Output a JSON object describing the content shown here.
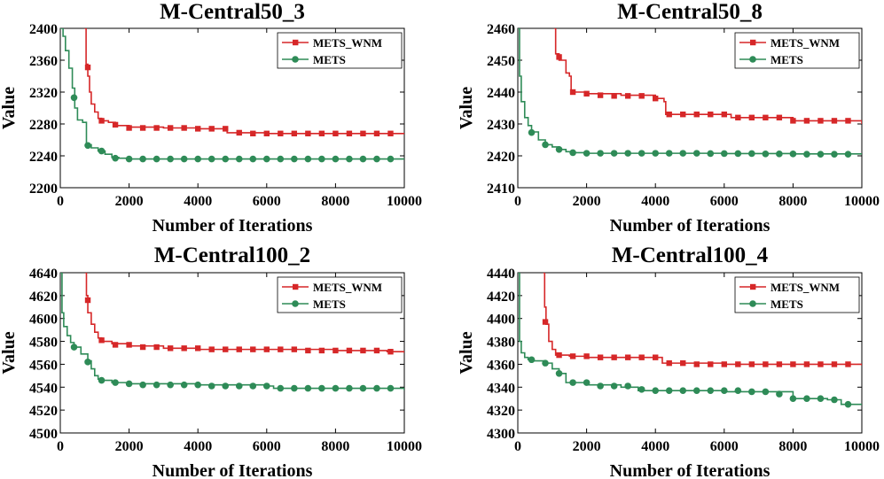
{
  "chart_data": [
    {
      "type": "line",
      "title": "M-Central50_3",
      "xlabel": "Number of Iterations",
      "ylabel": "Value",
      "xlim": [
        0,
        10000
      ],
      "ylim": [
        2200,
        2400
      ],
      "xticks": [
        "0",
        "2000",
        "4000",
        "6000",
        "8000",
        "10000"
      ],
      "yticks": [
        "2200",
        "2240",
        "2280",
        "2320",
        "2360",
        "2400"
      ],
      "grid": false,
      "legend_position": "top-right",
      "series": [
        {
          "name": "METS_WNM",
          "color": "#d62728",
          "marker": "square",
          "x": [
            700,
            750,
            800,
            850,
            900,
            1000,
            1100,
            1200,
            1400,
            1600,
            2000,
            3000,
            4000,
            4800,
            4850,
            6000,
            8000,
            10000
          ],
          "y": [
            2400,
            2355,
            2340,
            2320,
            2305,
            2295,
            2287,
            2284,
            2282,
            2278,
            2276,
            2275,
            2274,
            2274,
            2269,
            2268,
            2268,
            2268
          ],
          "markers_x": [
            800,
            1200,
            1600,
            2000,
            2400,
            2800,
            3200,
            3600,
            4000,
            4400,
            4800,
            5200,
            5600,
            6000,
            6400,
            6800,
            7200,
            7600,
            8000,
            8400,
            8800,
            9200,
            9600
          ],
          "markers_y": [
            2351,
            2284,
            2279,
            2275,
            2275,
            2275,
            2275,
            2275,
            2274,
            2274,
            2274,
            2269,
            2268,
            2268,
            2268,
            2268,
            2268,
            2268,
            2268,
            2268,
            2268,
            2268,
            2268
          ]
        },
        {
          "name": "METS",
          "color": "#2e8b57",
          "marker": "circle",
          "x": [
            0,
            80,
            150,
            250,
            350,
            420,
            500,
            650,
            760,
            900,
            1100,
            1300,
            1500,
            1700,
            2000,
            4000,
            6000,
            8000,
            10000
          ],
          "y": [
            2400,
            2390,
            2372,
            2350,
            2325,
            2300,
            2285,
            2282,
            2254,
            2250,
            2246,
            2242,
            2238,
            2237,
            2236,
            2236,
            2236,
            2236,
            2236
          ],
          "markers_x": [
            400,
            800,
            1200,
            1600,
            2000,
            2400,
            2800,
            3200,
            3600,
            4000,
            4400,
            4800,
            5200,
            5600,
            6000,
            6400,
            6800,
            7200,
            7600,
            8000,
            8400,
            8800,
            9200,
            9600
          ],
          "markers_y": [
            2313,
            2253,
            2246,
            2237,
            2236,
            2236,
            2236,
            2236,
            2236,
            2236,
            2236,
            2236,
            2236,
            2236,
            2236,
            2236,
            2236,
            2236,
            2236,
            2236,
            2236,
            2236,
            2236,
            2236
          ]
        }
      ]
    },
    {
      "type": "line",
      "title": "M-Central50_8",
      "xlabel": "Number of Iterations",
      "ylabel": "Value",
      "xlim": [
        0,
        10000
      ],
      "ylim": [
        2410,
        2460
      ],
      "xticks": [
        "0",
        "2000",
        "4000",
        "6000",
        "8000",
        "10000"
      ],
      "yticks": [
        "2410",
        "2420",
        "2430",
        "2440",
        "2450",
        "2460"
      ],
      "grid": false,
      "legend_position": "top-right",
      "series": [
        {
          "name": "METS_WNM",
          "color": "#d62728",
          "marker": "square",
          "x": [
            1050,
            1100,
            1200,
            1400,
            1500,
            1550,
            2000,
            3000,
            4000,
            4250,
            4300,
            6000,
            6200,
            8000,
            9800,
            10000
          ],
          "y": [
            2460,
            2452,
            2450,
            2446,
            2445,
            2440,
            2439.5,
            2439,
            2438,
            2437,
            2433,
            2433,
            2432,
            2431,
            2431,
            2430
          ],
          "markers_x": [
            1200,
            1600,
            2000,
            2400,
            2800,
            3200,
            3600,
            4000,
            4400,
            4800,
            5200,
            5600,
            6000,
            6400,
            6800,
            7200,
            7600,
            8000,
            8400,
            8800,
            9200,
            9600
          ],
          "markers_y": [
            2451,
            2440,
            2439.5,
            2439,
            2438.8,
            2438.8,
            2438.8,
            2438,
            2433,
            2433,
            2433,
            2433,
            2433,
            2432,
            2432,
            2432,
            2432,
            2431,
            2431,
            2431,
            2431,
            2431
          ]
        },
        {
          "name": "METS",
          "color": "#2e8b57",
          "marker": "circle",
          "x": [
            0,
            50,
            100,
            200,
            300,
            400,
            600,
            800,
            1000,
            1200,
            1400,
            1600,
            2000,
            4000,
            6000,
            8000,
            10000
          ],
          "y": [
            2460,
            2445,
            2437,
            2432,
            2429.5,
            2427.5,
            2425,
            2423.5,
            2422.8,
            2422,
            2421.3,
            2421,
            2420.8,
            2420.8,
            2420.7,
            2420.6,
            2420.5
          ],
          "markers_x": [
            400,
            800,
            1200,
            1600,
            2000,
            2400,
            2800,
            3200,
            3600,
            4000,
            4400,
            4800,
            5200,
            5600,
            6000,
            6400,
            6800,
            7200,
            7600,
            8000,
            8400,
            8800,
            9200,
            9600
          ],
          "markers_y": [
            2427.3,
            2423.5,
            2422,
            2421,
            2420.8,
            2420.8,
            2420.8,
            2420.8,
            2420.8,
            2420.8,
            2420.8,
            2420.8,
            2420.8,
            2420.7,
            2420.7,
            2420.7,
            2420.7,
            2420.6,
            2420.6,
            2420.6,
            2420.5,
            2420.5,
            2420.5,
            2420.5
          ]
        }
      ]
    },
    {
      "type": "line",
      "title": "M-Central100_2",
      "xlabel": "Number of Iterations",
      "ylabel": "Value",
      "xlim": [
        0,
        10000
      ],
      "ylim": [
        4500,
        4640
      ],
      "xticks": [
        "0",
        "2000",
        "4000",
        "6000",
        "8000",
        "10000"
      ],
      "yticks": [
        "4500",
        "4520",
        "4540",
        "4560",
        "4580",
        "4600",
        "4620",
        "4640"
      ],
      "grid": false,
      "legend_position": "top-right",
      "series": [
        {
          "name": "METS_WNM",
          "color": "#d62728",
          "marker": "square",
          "x": [
            720,
            760,
            800,
            900,
            1000,
            1100,
            1200,
            1500,
            2000,
            3000,
            4000,
            6000,
            8000,
            9400,
            9500,
            10000
          ],
          "y": [
            4640,
            4620,
            4605,
            4595,
            4588,
            4583,
            4580,
            4578,
            4576,
            4574,
            4573,
            4573,
            4572,
            4572,
            4571,
            4570
          ],
          "markers_x": [
            800,
            1200,
            1600,
            2000,
            2400,
            2800,
            3200,
            3600,
            4000,
            4400,
            4800,
            5200,
            5600,
            6000,
            6400,
            6800,
            7200,
            7600,
            8000,
            8400,
            8800,
            9200,
            9600
          ],
          "markers_y": [
            4616,
            4581,
            4577,
            4577,
            4575,
            4575,
            4574,
            4574,
            4574,
            4573,
            4573,
            4573,
            4573,
            4573,
            4573,
            4573,
            4572,
            4572,
            4572,
            4572,
            4572,
            4572,
            4571
          ]
        },
        {
          "name": "METS",
          "color": "#2e8b57",
          "marker": "circle",
          "x": [
            0,
            50,
            100,
            200,
            300,
            400,
            600,
            800,
            900,
            1000,
            1100,
            1200,
            1500,
            2000,
            4000,
            6000,
            6200,
            8000,
            10000
          ],
          "y": [
            4640,
            4605,
            4593,
            4585,
            4579,
            4575,
            4569,
            4563,
            4556,
            4550,
            4547,
            4546,
            4544,
            4543,
            4542,
            4541,
            4539,
            4539,
            4537
          ],
          "markers_x": [
            400,
            800,
            1200,
            1600,
            2000,
            2400,
            2800,
            3200,
            3600,
            4000,
            4400,
            4800,
            5200,
            5600,
            6000,
            6400,
            6800,
            7200,
            7600,
            8000,
            8400,
            8800,
            9200,
            9600
          ],
          "markers_y": [
            4575,
            4562,
            4546,
            4544,
            4543,
            4542,
            4542,
            4542,
            4542,
            4542,
            4541,
            4541,
            4541,
            4541,
            4541,
            4539,
            4539,
            4539,
            4539,
            4539,
            4539,
            4539,
            4539,
            4539
          ]
        }
      ]
    },
    {
      "type": "line",
      "title": "M-Central100_4",
      "xlabel": "Number of Iterations",
      "ylabel": "Value",
      "xlim": [
        0,
        10000
      ],
      "ylim": [
        4300,
        4440
      ],
      "xticks": [
        "0",
        "2000",
        "4000",
        "6000",
        "8000",
        "10000"
      ],
      "yticks": [
        "4300",
        "4320",
        "4340",
        "4360",
        "4380",
        "4400",
        "4420",
        "4440"
      ],
      "grid": false,
      "legend_position": "top-right",
      "series": [
        {
          "name": "METS_WNM",
          "color": "#d62728",
          "marker": "square",
          "x": [
            740,
            780,
            820,
            900,
            1000,
            1100,
            1500,
            2000,
            4000,
            4200,
            6000,
            8000,
            9600,
            10000
          ],
          "y": [
            4440,
            4410,
            4395,
            4380,
            4373,
            4368,
            4367,
            4366,
            4366,
            4361,
            4360,
            4360,
            4360,
            4359
          ],
          "markers_x": [
            800,
            1200,
            1600,
            2000,
            2400,
            2800,
            3200,
            3600,
            4000,
            4400,
            4800,
            5200,
            5600,
            6000,
            6400,
            6800,
            7200,
            7600,
            8000,
            8400,
            8800,
            9200,
            9600
          ],
          "markers_y": [
            4397,
            4368,
            4367,
            4367,
            4366,
            4366,
            4366,
            4366,
            4366,
            4361,
            4361,
            4360,
            4360,
            4360,
            4360,
            4360,
            4360,
            4360,
            4360,
            4360,
            4360,
            4360,
            4360
          ]
        },
        {
          "name": "METS",
          "color": "#2e8b57",
          "marker": "circle",
          "x": [
            0,
            50,
            100,
            200,
            300,
            400,
            800,
            1000,
            1200,
            1400,
            2000,
            3000,
            3500,
            4000,
            6000,
            7500,
            8000,
            9000,
            9400,
            10000
          ],
          "y": [
            4440,
            4380,
            4370,
            4366,
            4364,
            4363,
            4361,
            4356,
            4352,
            4344,
            4342,
            4340,
            4337,
            4337,
            4336,
            4336,
            4330,
            4329,
            4325,
            4325
          ],
          "markers_x": [
            400,
            800,
            1200,
            1600,
            2000,
            2400,
            2800,
            3200,
            3600,
            4000,
            4400,
            4800,
            5200,
            5600,
            6000,
            6400,
            6800,
            7200,
            7600,
            8000,
            8400,
            8800,
            9200,
            9600
          ],
          "markers_y": [
            4364,
            4361,
            4352,
            4344,
            4344,
            4341,
            4341,
            4341,
            4338,
            4337,
            4337,
            4337,
            4337,
            4337,
            4337,
            4337,
            4336,
            4336,
            4334,
            4330,
            4330,
            4330,
            4329,
            4325
          ]
        }
      ]
    }
  ]
}
